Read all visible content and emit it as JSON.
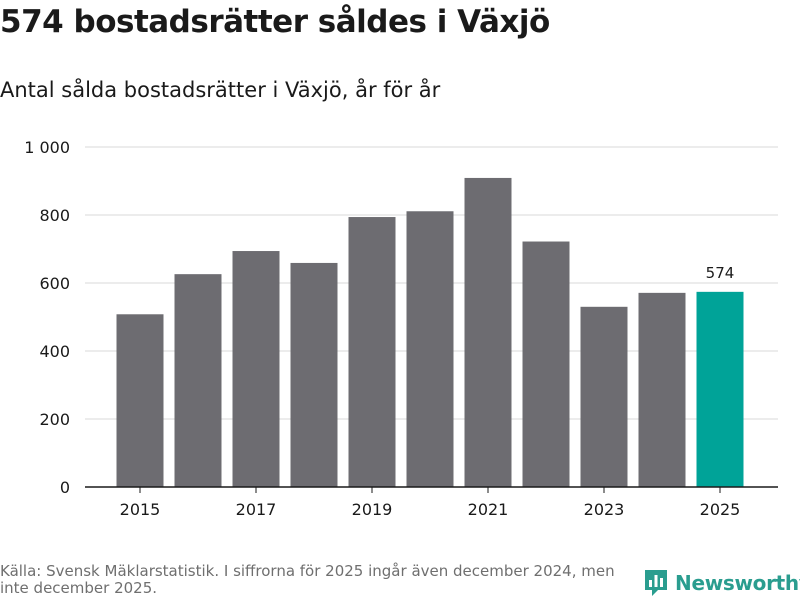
{
  "header": {
    "title": "574 bostadsrätter såldes i Växjö",
    "subtitle": "Antal sålda bostadsrätter i Växjö, år för år"
  },
  "footer": {
    "source": "Källa: Svensk Mäklarstatistik. I siffrorna för 2025 ingår även december 2024, men inte december 2025.",
    "brand": "Newsworthy"
  },
  "colors": {
    "bar": "#6d6c71",
    "highlight": "#00a398",
    "grid": "#d9d9d9",
    "axis": "#1a1a1a",
    "brand": "#2a9d8f"
  },
  "chart_data": {
    "type": "bar",
    "title": "574 bostadsrätter såldes i Växjö",
    "subtitle": "Antal sålda bostadsrätter i Växjö, år för år",
    "xlabel": "",
    "ylabel": "",
    "categories": [
      2015,
      2016,
      2017,
      2018,
      2019,
      2020,
      2021,
      2022,
      2023,
      2024,
      2025
    ],
    "values": [
      508,
      626,
      694,
      659,
      794,
      811,
      909,
      722,
      530,
      571,
      574
    ],
    "highlight_index": 10,
    "highlight_label": "574",
    "x_tick_labels": [
      "2015",
      "2017",
      "2019",
      "2021",
      "2023",
      "2025"
    ],
    "x_tick_years": [
      2015,
      2017,
      2019,
      2021,
      2023,
      2025
    ],
    "y_ticks": [
      0,
      200,
      400,
      600,
      800,
      1000
    ],
    "y_tick_labels": [
      "0",
      "200",
      "400",
      "600",
      "800",
      "1 000"
    ],
    "ylim": [
      0,
      1000
    ],
    "grid": true
  }
}
